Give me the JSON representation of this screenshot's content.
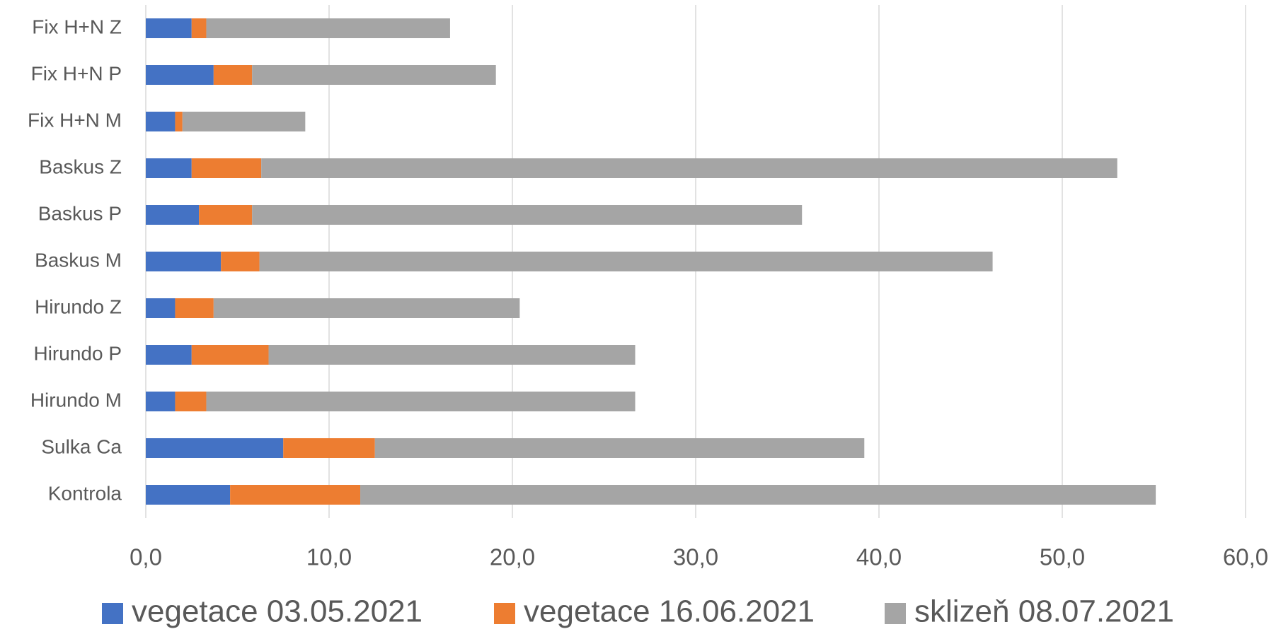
{
  "chart_data": {
    "type": "stacked_bar_horizontal",
    "categories": [
      "Kontrola",
      "Sulka Ca",
      "Hirundo M",
      "Hirundo P",
      "Hirundo Z",
      "Baskus M",
      "Baskus P",
      "Baskus Z",
      "Fix H+N M",
      "Fix H+N P",
      "Fix H+N Z"
    ],
    "series": [
      {
        "name": "vegetace 03.05.2021",
        "color": "#4472c4",
        "values": [
          4.6,
          7.5,
          1.6,
          2.5,
          1.6,
          4.1,
          2.9,
          2.5,
          1.6,
          3.7,
          2.5
        ]
      },
      {
        "name": "vegetace 16.06.2021",
        "color": "#ed7d31",
        "values": [
          7.1,
          5.0,
          1.7,
          4.2,
          2.1,
          2.1,
          2.9,
          3.8,
          0.4,
          2.1,
          0.8
        ]
      },
      {
        "name": "sklizeň 08.07.2021",
        "color": "#a5a5a5",
        "values": [
          43.4,
          26.7,
          23.4,
          20.0,
          16.7,
          40.0,
          30.0,
          46.7,
          6.7,
          13.3,
          13.3
        ]
      }
    ],
    "xlim": [
      0,
      60
    ],
    "xticks": [
      {
        "value": 0,
        "label": "0,0"
      },
      {
        "value": 10,
        "label": "10,0"
      },
      {
        "value": 20,
        "label": "20,0"
      },
      {
        "value": 30,
        "label": "30,0"
      },
      {
        "value": 40,
        "label": "40,0"
      },
      {
        "value": 50,
        "label": "50,0"
      },
      {
        "value": 60,
        "label": "60,0"
      }
    ],
    "grid": true,
    "legend": "bottom"
  }
}
